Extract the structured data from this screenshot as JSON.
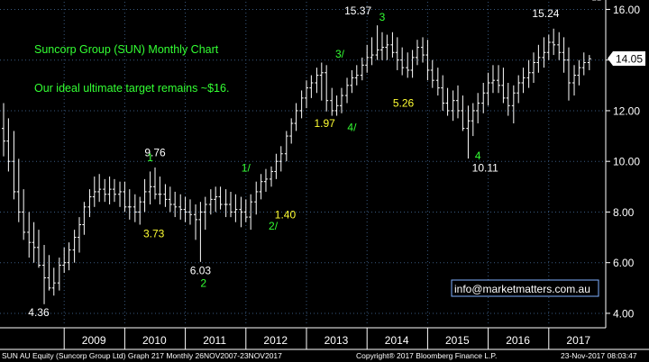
{
  "chart_data": {
    "type": "ohlc",
    "title": "Suncorp Group (SUN) Monthly Chart",
    "subtitle": "Our ideal ultimate target remains ~$16.",
    "ylim": [
      3.5,
      16.3
    ],
    "xlim": [
      2008.0,
      2018.0
    ],
    "yticks": [
      "4.00",
      "6.00",
      "8.00",
      "10.00",
      "12.00",
      "14.00",
      "16.00"
    ],
    "yticks_values": [
      4,
      6,
      8,
      10,
      12,
      14,
      16
    ],
    "xticks": [
      "2009",
      "2010",
      "2011",
      "2012",
      "2013",
      "2014",
      "2015",
      "2016",
      "2017"
    ],
    "xticks_values": [
      2009,
      2010,
      2011,
      2012,
      2013,
      2014,
      2015,
      2016,
      2017
    ],
    "last_price": "14.05",
    "last_price_value": 14.05,
    "grid": true,
    "series": [
      {
        "t": [
          2007.92,
          2008.0,
          2008.08,
          2008.17,
          2008.25,
          2008.33,
          2008.42,
          2008.5,
          2008.58,
          2008.67,
          2008.75,
          2008.83,
          2008.92,
          2009.0,
          2009.08,
          2009.17,
          2009.25,
          2009.33,
          2009.42,
          2009.5,
          2009.58,
          2009.67,
          2009.75,
          2009.83,
          2009.92,
          2010.0,
          2010.08,
          2010.17,
          2010.25,
          2010.33,
          2010.42,
          2010.5,
          2010.58,
          2010.67,
          2010.75,
          2010.83,
          2010.92,
          2011.0,
          2011.08,
          2011.17,
          2011.25,
          2011.33,
          2011.42,
          2011.5,
          2011.58,
          2011.67,
          2011.75,
          2011.83,
          2011.92,
          2012.0,
          2012.08,
          2012.17,
          2012.25,
          2012.33,
          2012.42,
          2012.5,
          2012.58,
          2012.67,
          2012.75,
          2012.83,
          2012.92,
          2013.0,
          2013.08,
          2013.17,
          2013.25,
          2013.33,
          2013.42,
          2013.5,
          2013.58,
          2013.67,
          2013.75,
          2013.83,
          2013.92,
          2014.0,
          2014.08,
          2014.17,
          2014.25,
          2014.33,
          2014.42,
          2014.5,
          2014.58,
          2014.67,
          2014.75,
          2014.83,
          2014.92,
          2015.0,
          2015.08,
          2015.17,
          2015.25,
          2015.33,
          2015.42,
          2015.5,
          2015.58,
          2015.67,
          2015.75,
          2015.83,
          2015.92,
          2016.0,
          2016.08,
          2016.17,
          2016.25,
          2016.33,
          2016.42,
          2016.5,
          2016.58,
          2016.67,
          2016.75,
          2016.83,
          2016.92,
          2017.0,
          2017.08,
          2017.17,
          2017.25,
          2017.33,
          2017.42,
          2017.5,
          2017.58,
          2017.67,
          2017.75,
          2017.83
        ],
        "o": [
          12.3,
          11.3,
          10.8,
          10.0,
          8.8,
          8.0,
          7.2,
          6.8,
          6.6,
          5.9,
          5.4,
          5.0,
          5.2,
          5.9,
          6.0,
          6.5,
          7.0,
          7.5,
          8.2,
          8.6,
          8.8,
          8.9,
          8.7,
          8.9,
          8.7,
          8.8,
          8.2,
          8.2,
          8.0,
          8.4,
          8.8,
          9.0,
          8.7,
          8.7,
          8.5,
          8.3,
          8.2,
          8.1,
          8.0,
          7.9,
          7.7,
          8.0,
          8.3,
          8.5,
          8.6,
          8.3,
          8.3,
          8.0,
          8.1,
          8.0,
          7.8,
          8.4,
          8.8,
          9.2,
          9.3,
          9.6,
          10.0,
          10.3,
          11.0,
          11.5,
          12.0,
          12.5,
          12.9,
          13.1,
          13.4,
          13.5,
          12.4,
          12.0,
          12.2,
          12.6,
          13.0,
          13.3,
          13.4,
          13.8,
          14.1,
          14.2,
          14.4,
          14.5,
          14.6,
          14.3,
          14.0,
          13.7,
          13.6,
          14.1,
          14.5,
          14.2,
          13.6,
          13.2,
          12.9,
          12.3,
          12.0,
          12.4,
          12.0,
          11.3,
          11.6,
          12.0,
          12.3,
          12.7,
          13.1,
          13.2,
          13.0,
          12.5,
          12.2,
          12.7,
          13.1,
          13.3,
          13.5,
          13.9,
          14.1,
          14.3,
          14.7,
          14.6,
          14.3,
          14.0,
          13.1,
          13.4,
          13.7,
          13.9
        ],
        "h": [
          12.6,
          12.3,
          11.7,
          11.2,
          10.1,
          8.9,
          8.0,
          7.6,
          7.3,
          6.7,
          6.3,
          5.8,
          6.2,
          6.6,
          6.8,
          7.3,
          7.8,
          8.4,
          8.9,
          9.4,
          9.5,
          9.3,
          9.4,
          9.3,
          9.2,
          9.2,
          8.9,
          8.7,
          8.6,
          9.3,
          9.6,
          9.76,
          9.4,
          9.1,
          9.0,
          8.8,
          8.7,
          8.6,
          8.5,
          8.3,
          8.4,
          8.6,
          8.9,
          9.0,
          9.0,
          8.9,
          8.8,
          8.7,
          8.6,
          8.5,
          8.7,
          9.2,
          9.5,
          9.7,
          9.8,
          10.3,
          10.6,
          11.2,
          11.7,
          12.3,
          12.8,
          13.2,
          13.4,
          13.7,
          13.9,
          13.8,
          12.9,
          12.6,
          12.9,
          13.3,
          13.6,
          13.8,
          14.1,
          14.6,
          14.9,
          15.37,
          15.1,
          15.0,
          15.1,
          14.9,
          14.5,
          14.3,
          14.4,
          14.8,
          14.9,
          14.8,
          14.0,
          13.7,
          13.4,
          12.9,
          12.8,
          13.0,
          12.6,
          12.2,
          12.3,
          12.7,
          13.1,
          13.5,
          13.8,
          13.8,
          13.7,
          13.1,
          13.0,
          13.4,
          13.7,
          14.0,
          14.3,
          14.6,
          14.9,
          15.0,
          15.24,
          15.1,
          14.9,
          14.5,
          13.8,
          14.0,
          14.3,
          14.2
        ],
        "l": [
          10.6,
          10.2,
          9.6,
          8.5,
          7.6,
          6.9,
          6.2,
          6.0,
          5.8,
          4.36,
          4.9,
          4.7,
          4.9,
          5.6,
          5.7,
          6.0,
          6.4,
          7.1,
          7.8,
          8.2,
          8.4,
          8.4,
          8.3,
          8.4,
          8.2,
          8.0,
          7.7,
          7.6,
          7.5,
          8.0,
          8.3,
          8.5,
          8.3,
          8.2,
          8.0,
          7.8,
          7.7,
          7.6,
          7.5,
          6.9,
          6.03,
          7.3,
          7.9,
          8.0,
          8.1,
          7.8,
          7.8,
          7.6,
          7.4,
          7.6,
          7.3,
          7.9,
          8.5,
          8.8,
          9.0,
          9.3,
          9.6,
          10.0,
          10.7,
          11.2,
          11.7,
          12.1,
          12.5,
          12.7,
          12.4,
          11.97,
          11.8,
          11.8,
          11.9,
          12.3,
          12.7,
          13.0,
          13.2,
          13.5,
          13.8,
          14.0,
          14.0,
          14.0,
          14.1,
          13.6,
          13.4,
          13.3,
          13.3,
          13.8,
          13.9,
          13.2,
          12.9,
          12.6,
          12.0,
          11.8,
          11.6,
          11.7,
          11.2,
          10.11,
          11.0,
          11.5,
          11.9,
          12.2,
          12.7,
          12.7,
          12.3,
          11.8,
          11.5,
          12.3,
          12.7,
          12.9,
          13.1,
          13.5,
          13.7,
          14.0,
          14.2,
          14.0,
          13.5,
          12.4,
          12.6,
          13.0,
          13.4,
          13.6
        ],
        "c": [
          11.3,
          10.8,
          10.0,
          8.8,
          8.0,
          7.2,
          6.8,
          6.6,
          5.9,
          5.4,
          5.0,
          5.2,
          5.9,
          6.0,
          6.5,
          7.0,
          7.5,
          8.2,
          8.6,
          8.8,
          8.9,
          8.7,
          8.9,
          8.7,
          8.8,
          8.2,
          8.2,
          8.0,
          8.4,
          8.8,
          9.0,
          8.7,
          8.7,
          8.5,
          8.3,
          8.2,
          8.1,
          8.0,
          7.9,
          7.7,
          8.0,
          8.3,
          8.5,
          8.6,
          8.3,
          8.3,
          8.0,
          8.1,
          8.0,
          7.8,
          8.4,
          8.8,
          9.2,
          9.3,
          9.6,
          10.0,
          10.3,
          11.0,
          11.5,
          12.0,
          12.5,
          12.9,
          13.1,
          13.4,
          13.5,
          12.4,
          12.0,
          12.2,
          12.6,
          13.0,
          13.3,
          13.4,
          13.8,
          14.1,
          14.2,
          14.4,
          14.5,
          14.6,
          14.3,
          14.0,
          13.7,
          13.6,
          14.1,
          14.5,
          14.2,
          13.6,
          13.2,
          12.9,
          12.3,
          12.0,
          12.4,
          12.0,
          11.3,
          11.6,
          12.0,
          12.3,
          12.7,
          13.1,
          13.2,
          13.0,
          12.5,
          12.2,
          12.7,
          13.1,
          13.3,
          13.5,
          13.9,
          14.1,
          14.3,
          14.7,
          14.6,
          14.3,
          14.0,
          13.1,
          13.4,
          13.7,
          13.9,
          14.05
        ]
      }
    ],
    "annotations": [
      {
        "text": "4.36",
        "color": "white",
        "t": 2008.58,
        "v": 3.9
      },
      {
        "text": "9.76",
        "color": "white",
        "t": 2010.5,
        "v": 10.2
      },
      {
        "text": "6.03",
        "color": "white",
        "t": 2011.25,
        "v": 5.55
      },
      {
        "text": "15.37",
        "color": "white",
        "t": 2013.85,
        "v": 15.8
      },
      {
        "text": "10.11",
        "color": "white",
        "t": 2015.95,
        "v": 9.6
      },
      {
        "text": "15.24",
        "color": "white",
        "t": 2016.95,
        "v": 15.7
      },
      {
        "text": "3.73",
        "color": "yellow",
        "t": 2010.48,
        "v": 7.0
      },
      {
        "text": "1.40",
        "color": "yellow",
        "t": 2012.65,
        "v": 7.75
      },
      {
        "text": "1.97",
        "color": "yellow",
        "t": 2013.3,
        "v": 11.35
      },
      {
        "text": "5.26",
        "color": "yellow",
        "t": 2014.6,
        "v": 12.15
      },
      {
        "text": "1",
        "color": "green",
        "t": 2010.42,
        "v": 10.0
      },
      {
        "text": "2",
        "color": "green",
        "t": 2011.3,
        "v": 5.05
      },
      {
        "text": "1/",
        "color": "green",
        "t": 2012.0,
        "v": 9.6
      },
      {
        "text": "2/",
        "color": "green",
        "t": 2012.45,
        "v": 7.3
      },
      {
        "text": "3/",
        "color": "green",
        "t": 2013.55,
        "v": 14.1
      },
      {
        "text": "4/",
        "color": "green",
        "t": 2013.75,
        "v": 11.2
      },
      {
        "text": "3",
        "color": "green",
        "t": 2014.25,
        "v": 15.55
      },
      {
        "text": "4",
        "color": "green",
        "t": 2015.83,
        "v": 10.08
      }
    ]
  },
  "overlay": {
    "title": "Suncorp Group (SUN) Monthly Chart",
    "subtitle": "Our ideal ultimate target remains ~$16.",
    "watermark": "info@marketmatters.com.au",
    "last_price": "14.05"
  },
  "footer": {
    "left": "SUN AU Equity (Suncorp Group Ltd) Graph 217  Monthly 26NOV2007-23NOV2017",
    "center": "Copyright® 2017 Bloomberg Finance L.P.",
    "right": "23-Nov-2017 08:03:47"
  },
  "colors": {
    "background": "#000000",
    "bar": "#ffffff",
    "grid": "#3a5a80",
    "green_label": "#33ff33",
    "yellow_label": "#ffff33",
    "price_tag_bg": "#ffffff",
    "watermark_border": "#7fb0ff"
  }
}
